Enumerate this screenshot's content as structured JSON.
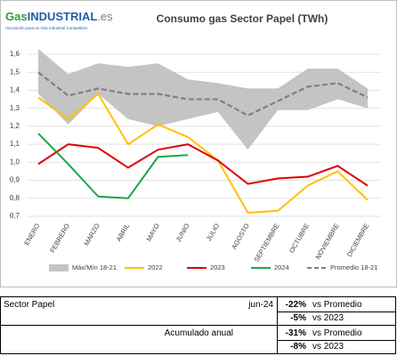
{
  "logo": {
    "parts": [
      "Gas",
      "INDUSTRIAL",
      ".es"
    ],
    "tagline": "Asociación para un Gas Industrial Competitivo"
  },
  "chart_data": {
    "type": "line",
    "title": "Consumo gas Sector Papel (TWh)",
    "categories": [
      "ENERO",
      "FEBRERO",
      "MARZO",
      "ABRIL",
      "MAYO",
      "JUNIO",
      "JULIO",
      "AGOSTO",
      "SEPTIEMBRE",
      "OCTUBRE",
      "NOVIEMBRE",
      "DICIEMBRE"
    ],
    "ylim": [
      0.7,
      1.6
    ],
    "yticks": [
      {
        "value": 0.7,
        "label": "0,7"
      },
      {
        "value": 0.8,
        "label": "0,8"
      },
      {
        "value": 0.9,
        "label": "0,9"
      },
      {
        "value": 1.0,
        "label": "1,0"
      },
      {
        "value": 1.1,
        "label": "1,1"
      },
      {
        "value": 1.2,
        "label": "1,2"
      },
      {
        "value": 1.3,
        "label": "1,3"
      },
      {
        "value": 1.4,
        "label": "1,4"
      },
      {
        "value": 1.5,
        "label": "1,5"
      },
      {
        "value": 1.6,
        "label": "1,6"
      }
    ],
    "grid": true,
    "legend": "bottom",
    "series": [
      {
        "name": "Máx/Mín 18-21",
        "color": "#c4c4c4",
        "style": "band",
        "max": [
          1.63,
          1.49,
          1.55,
          1.53,
          1.55,
          1.46,
          1.44,
          1.41,
          1.41,
          1.52,
          1.52,
          1.41
        ],
        "min": [
          1.38,
          1.21,
          1.38,
          1.24,
          1.2,
          1.24,
          1.28,
          1.07,
          1.29,
          1.29,
          1.35,
          1.3
        ]
      },
      {
        "name": "2022",
        "color": "#ffc000",
        "style": "solid",
        "values": [
          1.36,
          1.24,
          1.38,
          1.1,
          1.21,
          1.14,
          1.01,
          0.72,
          0.73,
          0.87,
          0.95,
          0.79
        ]
      },
      {
        "name": "2023",
        "color": "#e00000",
        "style": "solid",
        "values": [
          0.99,
          1.1,
          1.08,
          0.97,
          1.07,
          1.1,
          1.01,
          0.88,
          0.91,
          0.92,
          0.98,
          0.87
        ]
      },
      {
        "name": "2024",
        "color": "#1aa64a",
        "style": "solid",
        "values": [
          1.16,
          0.99,
          0.81,
          0.8,
          1.03,
          1.04,
          null,
          null,
          null,
          null,
          null,
          null
        ]
      },
      {
        "name": "Promedio 18-21",
        "color": "#808080",
        "style": "dashed",
        "values": [
          1.5,
          1.37,
          1.41,
          1.38,
          1.38,
          1.35,
          1.35,
          1.26,
          1.34,
          1.42,
          1.44,
          1.36
        ]
      }
    ]
  },
  "table": {
    "sections": [
      {
        "label": "Sector Papel",
        "period": "jun-24",
        "items": [
          {
            "value": "-22%",
            "comparison": "vs Promedio"
          },
          {
            "value": "-5%",
            "comparison": "vs 2023"
          }
        ]
      },
      {
        "label": "Acumulado anual",
        "items": [
          {
            "value": "-31%",
            "comparison": "vs Promedio"
          },
          {
            "value": "-8%",
            "comparison": "vs 2023"
          }
        ]
      }
    ]
  }
}
